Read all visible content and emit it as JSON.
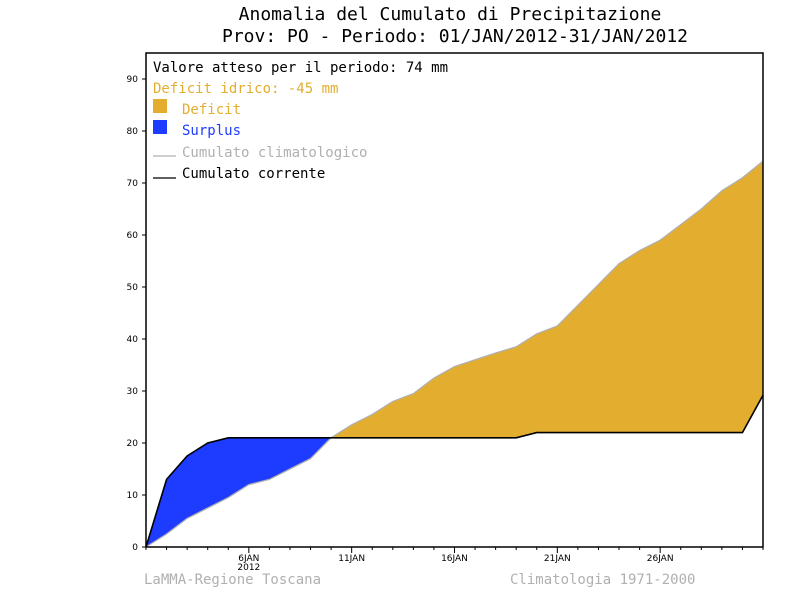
{
  "colors": {
    "deficit": "#E3AE2F",
    "surplus": "#1E3CFF",
    "climatological_line": "#b0b0b0",
    "current_line": "#000000",
    "deficit_text": "#E3AE2F",
    "surplus_text": "#1E3CFF",
    "footer_text": "#b0b0b0"
  },
  "chart_data": {
    "type": "area",
    "title": "Anomalia del Cumulato di Precipitazione",
    "subtitle": "Prov: PO - Periodo: 01/JAN/2012-31/JAN/2012",
    "xlim": [
      1,
      31
    ],
    "ylim": [
      0,
      95
    ],
    "y_ticks": [
      0,
      10,
      20,
      30,
      40,
      50,
      60,
      70,
      80,
      90
    ],
    "x_ticks": [
      {
        "day": 6,
        "label": "6JAN",
        "sublabel": "2012"
      },
      {
        "day": 11,
        "label": "11JAN"
      },
      {
        "day": 16,
        "label": "16JAN"
      },
      {
        "day": 21,
        "label": "21JAN"
      },
      {
        "day": 26,
        "label": "26JAN"
      }
    ],
    "series": [
      {
        "name": "Cumulato climatologico",
        "x": [
          1,
          2,
          3,
          4,
          5,
          6,
          7,
          8,
          9,
          10,
          11,
          12,
          13,
          14,
          15,
          16,
          17,
          18,
          19,
          20,
          21,
          22,
          23,
          24,
          25,
          26,
          27,
          28,
          29,
          30,
          31
        ],
        "y": [
          0,
          2.5,
          5.5,
          7.5,
          9.5,
          12,
          13,
          15,
          17,
          21,
          23.5,
          25.5,
          28,
          29.5,
          32.5,
          34.7,
          36,
          37.3,
          38.5,
          41,
          42.5,
          46.5,
          50.5,
          54.5,
          57,
          59,
          62,
          65,
          68.5,
          71,
          74.2
        ]
      },
      {
        "name": "Cumulato corrente",
        "x": [
          1,
          2,
          3,
          4,
          5,
          6,
          7,
          8,
          9,
          10,
          11,
          12,
          13,
          14,
          15,
          16,
          17,
          18,
          19,
          20,
          21,
          22,
          23,
          24,
          25,
          26,
          27,
          28,
          29,
          30,
          31
        ],
        "y": [
          0,
          13,
          17.5,
          20,
          21,
          21,
          21,
          21,
          21,
          21,
          21,
          21,
          21,
          21,
          21,
          21,
          21,
          21,
          21,
          22,
          22,
          22,
          22,
          22,
          22,
          22,
          22,
          22,
          22,
          22,
          29.2
        ]
      }
    ],
    "legend_placement": "top-left"
  },
  "legend": {
    "expected_text": "Valore atteso per il periodo: 74 mm",
    "deficit_text": "Deficit idrico: -45 mm",
    "deficit_label": "Deficit",
    "surplus_label": "Surplus",
    "climatological_label": "Cumulato climatologico",
    "current_label": "Cumulato corrente"
  },
  "footer": {
    "left": "LaMMA-Regione Toscana",
    "right": "Climatologia 1971-2000"
  }
}
